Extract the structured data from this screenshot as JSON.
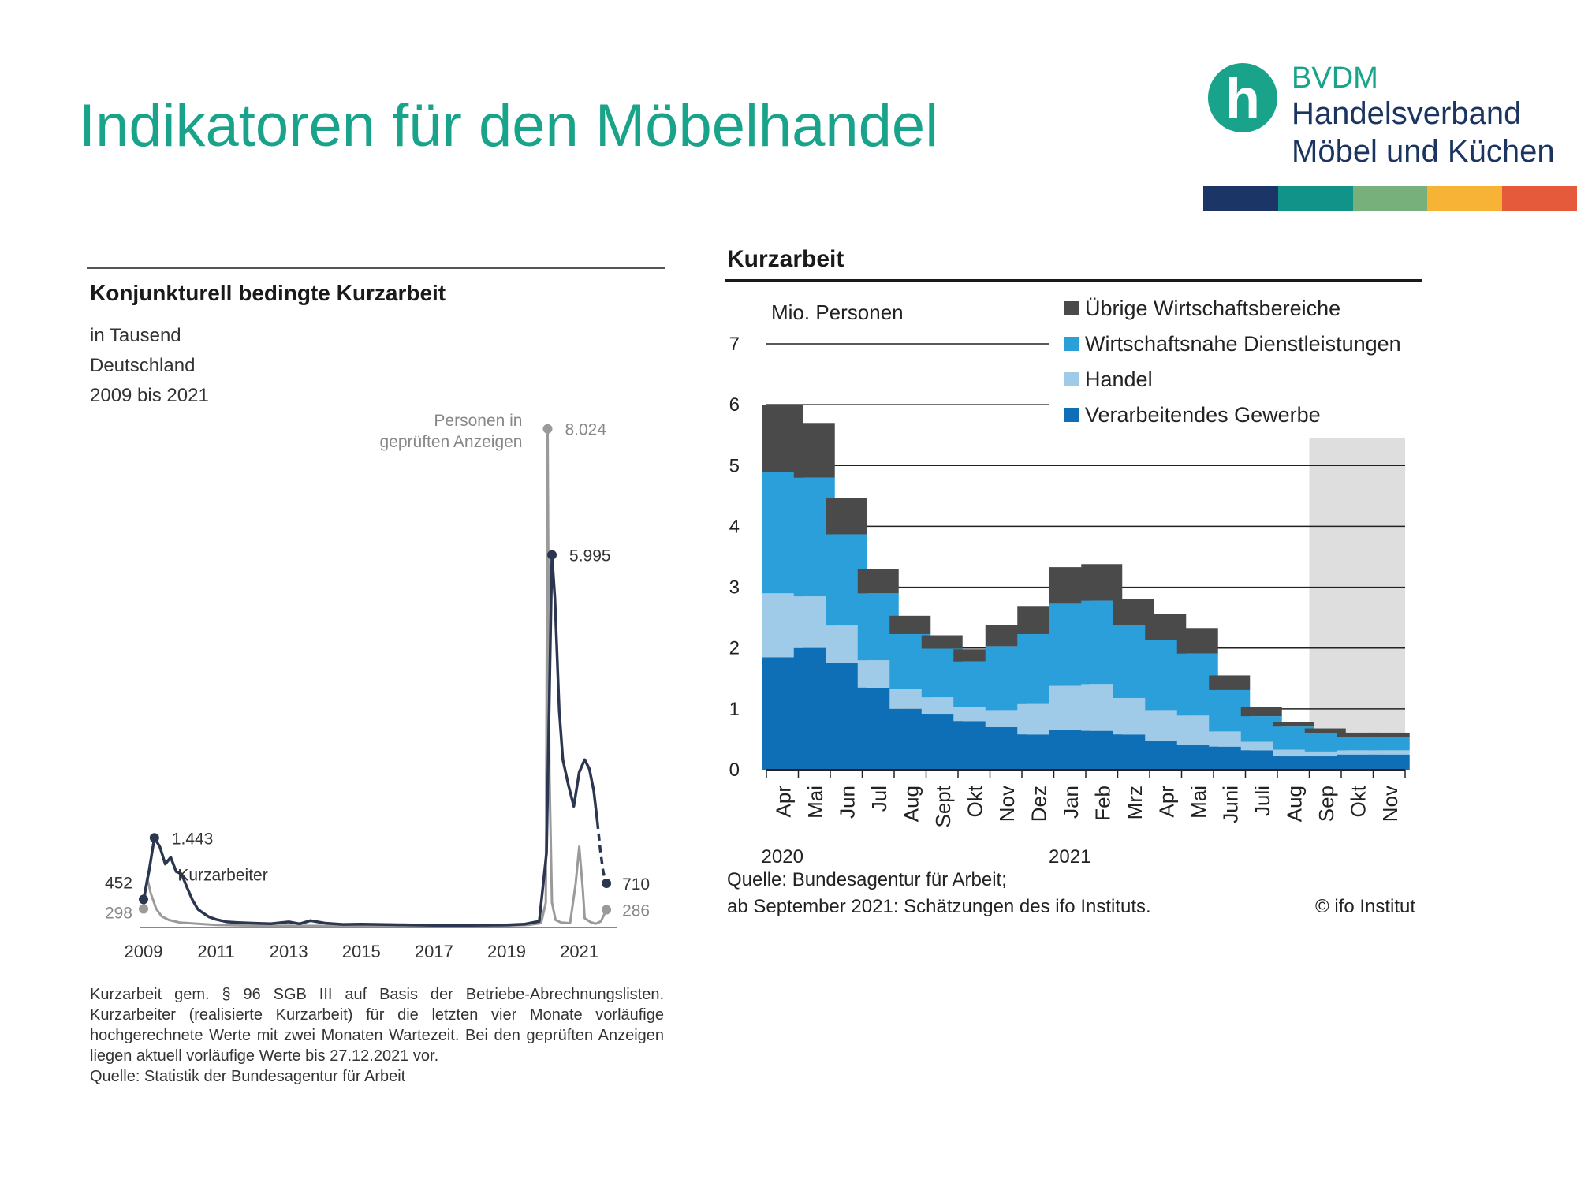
{
  "page": {
    "title": "Indikatoren für den Möbelhandel"
  },
  "logo": {
    "brand": "BVDM",
    "line1": "Handelsverband",
    "line2": "Möbel und Küchen",
    "mark_glyph": "h",
    "strip_colors": [
      "#1b3566",
      "#12938a",
      "#78b07c",
      "#f6b335",
      "#e65a3c"
    ]
  },
  "colors": {
    "accent": "#19a38a",
    "kurzarbeiter_line": "#2b3650",
    "anzeigen_line": "#9a9a9a",
    "verarbeitendes": "#0e6fb6",
    "handel": "#9fcbe8",
    "dienstleistungen": "#2a9fd9",
    "uebrige": "#4a4a4a",
    "forecast_bg": "#dedede"
  },
  "chart1": {
    "title": "Konjunkturell bedingte Kurzarbeit",
    "unit": "in Tausend",
    "region": "Deutschland",
    "period": "2009 bis 2021",
    "footnote": "Kurzarbeit gem. § 96 SGB III auf Basis der Betriebe-Abrechnungslisten. Kurzarbeiter (realisierte Kurzarbeit) für die letzten vier Monate vorläufige hochgerechnete Werte mit zwei Monaten Wartezeit. Bei den geprüften Anzeigen liegen aktuell vorläufige Werte bis 27.12.2021 vor.",
    "source": "Quelle: Statistik der Bundesagentur für Arbeit"
  },
  "chart2": {
    "title": "Kurzarbeit",
    "source_line1": "Quelle: Bundesagentur für Arbeit;",
    "source_line2": "ab September 2021: Schätzungen des ifo Instituts.",
    "copyright": "© ifo Institut"
  },
  "chart_data": [
    {
      "type": "line",
      "title": "Konjunkturell bedingte Kurzarbeit",
      "unit": "in Tausend",
      "x_ticks": [
        "2009",
        "2011",
        "2013",
        "2015",
        "2017",
        "2019",
        "2021"
      ],
      "xlim": [
        2009,
        2021.9
      ],
      "ylim": [
        0,
        8300
      ],
      "series": [
        {
          "name": "Kurzarbeiter",
          "x": [
            2009.0,
            2009.15,
            2009.3,
            2009.45,
            2009.6,
            2009.75,
            2009.9,
            2010.05,
            2010.2,
            2010.35,
            2010.5,
            2010.65,
            2010.8,
            2011.0,
            2011.3,
            2011.6,
            2012.0,
            2012.5,
            2013.0,
            2013.3,
            2013.6,
            2014.0,
            2014.5,
            2015.0,
            2016.0,
            2017.0,
            2018.0,
            2019.0,
            2019.5,
            2019.9,
            2020.1,
            2020.25,
            2020.33,
            2020.45,
            2020.55,
            2020.7,
            2020.85,
            2021.0,
            2021.15,
            2021.28,
            2021.4,
            2021.5,
            2021.58,
            2021.66,
            2021.75
          ],
          "y": [
            452,
            900,
            1443,
            1300,
            1020,
            1130,
            900,
            860,
            640,
            440,
            290,
            230,
            170,
            130,
            90,
            80,
            70,
            60,
            90,
            60,
            110,
            70,
            50,
            55,
            45,
            35,
            35,
            40,
            55,
            100,
            1200,
            5995,
            5300,
            3500,
            2700,
            2300,
            1950,
            2500,
            2700,
            2550,
            2200,
            1700,
            1250,
            900,
            710
          ],
          "label_start": "452",
          "label_peak": "1.443",
          "label_covid_peak": "5.995",
          "label_end": "710",
          "series_label": "Kurzarbeiter",
          "preliminary_from_x": 2021.5
        },
        {
          "name": "Personen in geprüften Anzeigen",
          "x": [
            2009.0,
            2009.1,
            2009.2,
            2009.35,
            2009.5,
            2009.7,
            2010.0,
            2010.5,
            2011.0,
            2012.0,
            2014.0,
            2016.0,
            2018.0,
            2019.0,
            2019.6,
            2019.95,
            2020.08,
            2020.13,
            2020.18,
            2020.25,
            2020.35,
            2020.5,
            2020.75,
            2020.9,
            2021.0,
            2021.1,
            2021.15,
            2021.3,
            2021.45,
            2021.6,
            2021.75
          ],
          "y": [
            298,
            800,
            550,
            300,
            180,
            120,
            80,
            60,
            40,
            30,
            25,
            25,
            25,
            30,
            40,
            70,
            400,
            8024,
            2500,
            400,
            120,
            80,
            70,
            700,
            1300,
            600,
            150,
            90,
            60,
            100,
            286
          ],
          "label_peak": "8.024",
          "label_start": "298",
          "label_end": "286",
          "series_label_line1": "Personen in",
          "series_label_line2": "geprüften Anzeigen"
        }
      ]
    },
    {
      "type": "bar",
      "stacked": true,
      "title": "Kurzarbeit",
      "ylabel": "Mio. Personen",
      "ylim": [
        0,
        7
      ],
      "yticks": [
        0,
        1,
        2,
        3,
        4,
        5,
        6,
        7
      ],
      "grid": true,
      "legend_position": "top-right",
      "categories": [
        "Apr",
        "Mai",
        "Jun",
        "Jul",
        "Aug",
        "Sept",
        "Okt",
        "Nov",
        "Dez",
        "Jan",
        "Feb",
        "Mrz",
        "Apr",
        "Mai",
        "Juni",
        "Juli",
        "Aug",
        "Sep",
        "Okt",
        "Nov"
      ],
      "year_labels": [
        {
          "label": "2020",
          "at_index": 0
        },
        {
          "label": "2021",
          "at_index": 9
        }
      ],
      "forecast_from_index": 17,
      "series": [
        {
          "name": "Verarbeitendes Gewerbe",
          "color": "#0e6fb6",
          "values": [
            1.85,
            2.0,
            1.75,
            1.35,
            1.0,
            0.92,
            0.8,
            0.7,
            0.58,
            0.66,
            0.64,
            0.58,
            0.48,
            0.41,
            0.38,
            0.32,
            0.22,
            0.22,
            0.25,
            0.25
          ]
        },
        {
          "name": "Handel",
          "color": "#9fcbe8",
          "values": [
            1.05,
            0.85,
            0.62,
            0.45,
            0.33,
            0.27,
            0.23,
            0.28,
            0.5,
            0.72,
            0.77,
            0.6,
            0.5,
            0.48,
            0.25,
            0.14,
            0.11,
            0.08,
            0.07,
            0.07
          ]
        },
        {
          "name": "Wirtschaftsnahe Dienstleistungen",
          "color": "#2a9fd9",
          "values": [
            2.0,
            1.95,
            1.5,
            1.1,
            0.9,
            0.8,
            0.75,
            1.05,
            1.15,
            1.35,
            1.37,
            1.2,
            1.15,
            1.02,
            0.68,
            0.42,
            0.38,
            0.3,
            0.22,
            0.22
          ]
        },
        {
          "name": "Übrige Wirtschaftsbereiche",
          "color": "#4a4a4a",
          "values": [
            1.1,
            0.9,
            0.6,
            0.4,
            0.3,
            0.22,
            0.2,
            0.35,
            0.45,
            0.6,
            0.6,
            0.42,
            0.43,
            0.42,
            0.24,
            0.15,
            0.07,
            0.08,
            0.07,
            0.07
          ]
        }
      ]
    }
  ]
}
